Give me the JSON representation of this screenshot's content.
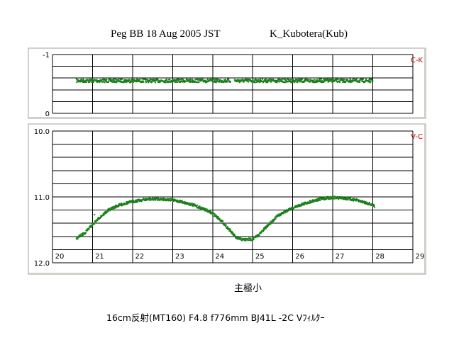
{
  "header": {
    "title": "Peg BB 18 Aug 2005 JST",
    "observer": "K_Kubotera(Kub)"
  },
  "footer": {
    "event": "主極小",
    "instrument": "16cm反射(MT160) F4.8 f776mm  BJ41L  -2C  Vﾌｨﾙﾀｰ"
  },
  "chart_data": [
    {
      "type": "scatter",
      "label": "C-K",
      "ylim": [
        -1,
        0
      ],
      "ytick_labels": [
        "-1",
        "0"
      ],
      "xlim": [
        20,
        29
      ],
      "grid": true,
      "color": "#1a7f1a",
      "segments": [
        {
          "x_start": 20.6,
          "x_end": 24.45,
          "y": -0.555
        },
        {
          "x_start": 24.55,
          "x_end": 28.0,
          "y": -0.555
        }
      ]
    },
    {
      "type": "scatter",
      "label": "V-C",
      "ylim": [
        10.0,
        12.0
      ],
      "ytick_labels": [
        "10.0",
        "11.0",
        "12.0"
      ],
      "xlim": [
        20,
        29
      ],
      "xtick_labels": [
        "20",
        "21",
        "22",
        "23",
        "24",
        "25",
        "26",
        "27",
        "28",
        "29"
      ],
      "grid": true,
      "color": "#1a7f1a",
      "curve": [
        [
          20.6,
          11.63
        ],
        [
          20.8,
          11.55
        ],
        [
          21.0,
          11.42
        ],
        [
          21.2,
          11.3
        ],
        [
          21.4,
          11.2
        ],
        [
          21.6,
          11.14
        ],
        [
          21.8,
          11.1
        ],
        [
          22.0,
          11.07
        ],
        [
          22.3,
          11.04
        ],
        [
          22.6,
          11.03
        ],
        [
          22.9,
          11.04
        ],
        [
          23.2,
          11.07
        ],
        [
          23.5,
          11.12
        ],
        [
          23.8,
          11.19
        ],
        [
          24.0,
          11.25
        ],
        [
          24.2,
          11.35
        ],
        [
          24.42,
          11.5
        ],
        [
          24.6,
          11.63
        ],
        [
          24.8,
          11.65
        ],
        [
          25.0,
          11.64
        ],
        [
          25.15,
          11.58
        ],
        [
          25.35,
          11.45
        ],
        [
          25.6,
          11.3
        ],
        [
          25.9,
          11.19
        ],
        [
          26.2,
          11.12
        ],
        [
          26.5,
          11.06
        ],
        [
          26.8,
          11.02
        ],
        [
          27.0,
          11.01
        ],
        [
          27.3,
          11.02
        ],
        [
          27.6,
          11.05
        ],
        [
          27.9,
          11.1
        ],
        [
          28.05,
          11.14
        ]
      ],
      "outliers": [
        [
          21.05,
          11.27
        ],
        [
          20.75,
          11.6
        ]
      ]
    }
  ]
}
